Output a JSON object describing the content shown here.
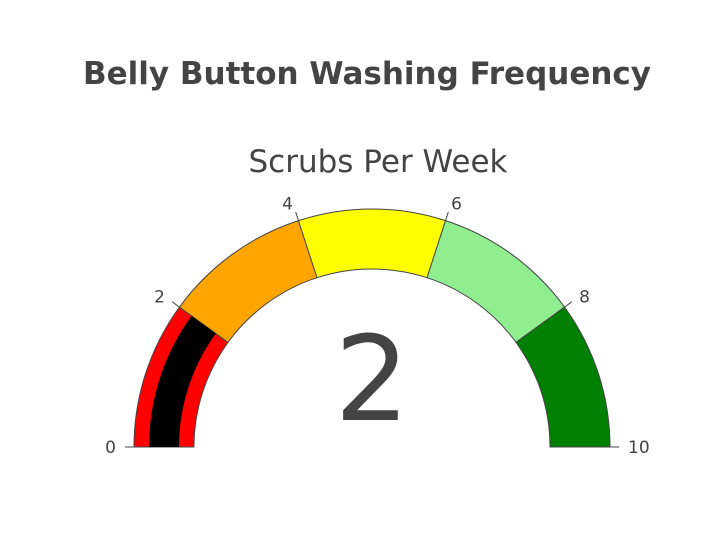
{
  "chart_data": {
    "type": "gauge",
    "title": "Belly Button Washing Frequency",
    "subtitle": "Scrubs Per Week",
    "value": 2,
    "range": [
      0,
      10
    ],
    "ticks": [
      {
        "value": 0,
        "label": "0"
      },
      {
        "value": 2,
        "label": "2"
      },
      {
        "value": 4,
        "label": "4"
      },
      {
        "value": 6,
        "label": "6"
      },
      {
        "value": 8,
        "label": "8"
      },
      {
        "value": 10,
        "label": "10"
      }
    ],
    "steps": [
      {
        "range": [
          0,
          2
        ],
        "color": "#ff0000"
      },
      {
        "range": [
          2,
          4
        ],
        "color": "#ffa500"
      },
      {
        "range": [
          4,
          6
        ],
        "color": "#ffff00"
      },
      {
        "range": [
          6,
          8
        ],
        "color": "#90ee90"
      },
      {
        "range": [
          8,
          10
        ],
        "color": "#008000"
      }
    ],
    "bar_color": "#000000"
  }
}
